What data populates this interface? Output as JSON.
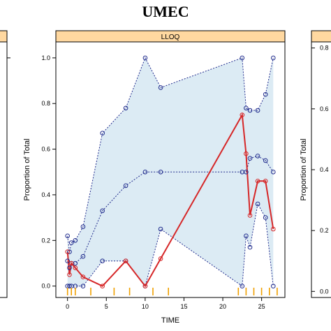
{
  "title": "UMEC",
  "panel_label": "LLOQ",
  "colors": {
    "band": "#dcebf4",
    "percentile": "#1f2a8c",
    "observed": "#d62728",
    "rug": "#f0a000",
    "strip": "#ffd8a0",
    "strip_border": "#c88a3a"
  },
  "chart_data": {
    "type": "line",
    "xlabel": "TIME",
    "ylabel": "Proportion of Total",
    "xlim": [
      -1.5,
      28
    ],
    "ylim": [
      -0.05,
      1.07
    ],
    "xticks": [
      0,
      5,
      10,
      15,
      20,
      25
    ],
    "yticks": [
      0.0,
      0.2,
      0.4,
      0.6,
      0.8,
      1.0
    ],
    "ytick_labels": [
      "0.0",
      "0.2",
      "0.4",
      "0.6",
      "0.8",
      "1.0"
    ],
    "x": [
      0,
      0.25,
      0.5,
      1,
      2,
      4.5,
      7.5,
      10,
      12,
      22.5,
      23,
      23.5,
      24.5,
      25.5,
      26.5
    ],
    "observed": [
      0.15,
      0.05,
      0.1,
      0.08,
      0.04,
      0.0,
      0.11,
      0.0,
      0.12,
      0.75,
      0.58,
      0.31,
      0.46,
      0.46,
      0.25
    ],
    "upper": [
      0.22,
      0.15,
      0.19,
      0.2,
      0.26,
      0.67,
      0.78,
      1.0,
      0.87,
      1.0,
      0.78,
      0.77,
      0.77,
      0.84,
      1.0
    ],
    "median": [
      0.11,
      0.08,
      0.1,
      0.1,
      0.13,
      0.33,
      0.44,
      0.5,
      0.5,
      0.5,
      0.5,
      0.56,
      0.57,
      0.55,
      0.5
    ],
    "lower": [
      0.0,
      0.0,
      0.0,
      0.0,
      0.0,
      0.11,
      0.11,
      0.0,
      0.25,
      0.0,
      0.22,
      0.17,
      0.36,
      0.3,
      0.0
    ],
    "rug_x": [
      0,
      0.5,
      1,
      3,
      6,
      8,
      11,
      13,
      22,
      23,
      24,
      25,
      26,
      27
    ],
    "left_panel": {
      "yticks": [
        1.0
      ]
    },
    "right_panel": {
      "ylabel": "Proportion of Total",
      "yticks": [
        0.0,
        0.2,
        0.4,
        0.6,
        0.8
      ],
      "ytick_labels": [
        "0.0",
        "0.2",
        "0.4",
        "0.6",
        "0.8"
      ]
    }
  }
}
